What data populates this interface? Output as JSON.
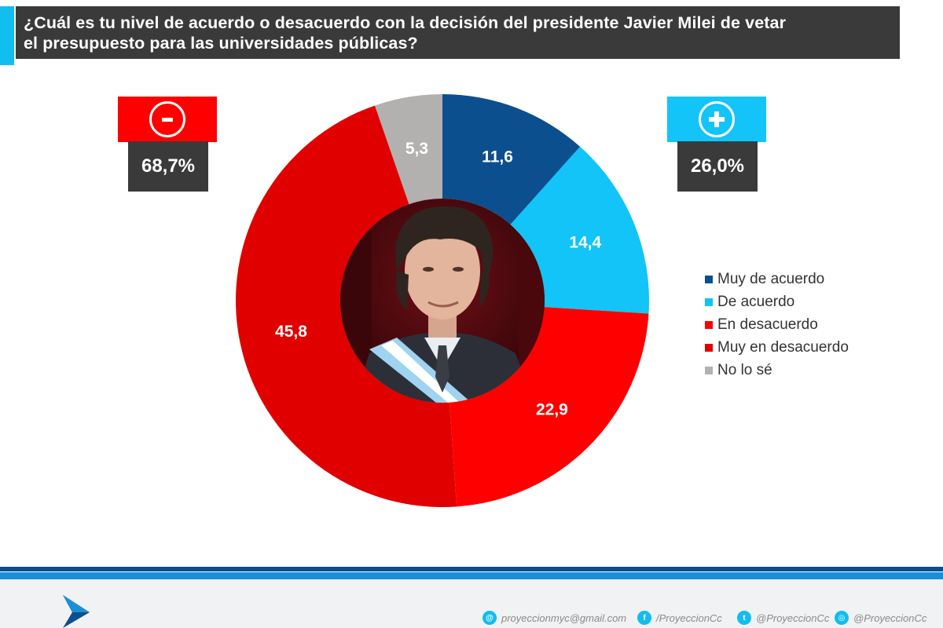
{
  "title": {
    "line1": "¿Cuál es tu nivel de acuerdo o desacuerdo con la decisión del presidente Javier Milei de vetar",
    "line2": "el presupuesto para las universidades públicas?"
  },
  "badges": {
    "minus": {
      "sign": "-",
      "value": "68,7%",
      "color": "#ff0000"
    },
    "plus": {
      "sign": "+",
      "value": "26,0%",
      "color": "#12c4f7"
    }
  },
  "chart_data": {
    "type": "pie",
    "variant": "donut",
    "title": "¿Cuál es tu nivel de acuerdo o desacuerdo con la decisión del presidente Javier Milei de vetar el presupuesto para las universidades públicas?",
    "categories": [
      "Muy de acuerdo",
      "De acuerdo",
      "En desacuerdo",
      "Muy en desacuerdo",
      "No lo sé"
    ],
    "values": [
      11.6,
      14.4,
      22.9,
      45.8,
      5.3
    ],
    "labels": [
      "11,6",
      "14,4",
      "22,9",
      "45,8",
      "5,3"
    ],
    "colors": [
      "#0b4f8f",
      "#12c4f7",
      "#ff0000",
      "#e00000",
      "#b3b1b0"
    ],
    "center_image": "portrait-photo",
    "legend_position": "right"
  },
  "footer": {
    "email": "proyeccionmyc@gmail.com",
    "facebook": "/ProyeccionCc",
    "twitter": "@ProyeccionCc",
    "instagram": "@ProyeccionCc",
    "logo_icon": "arrow-logo-icon"
  }
}
